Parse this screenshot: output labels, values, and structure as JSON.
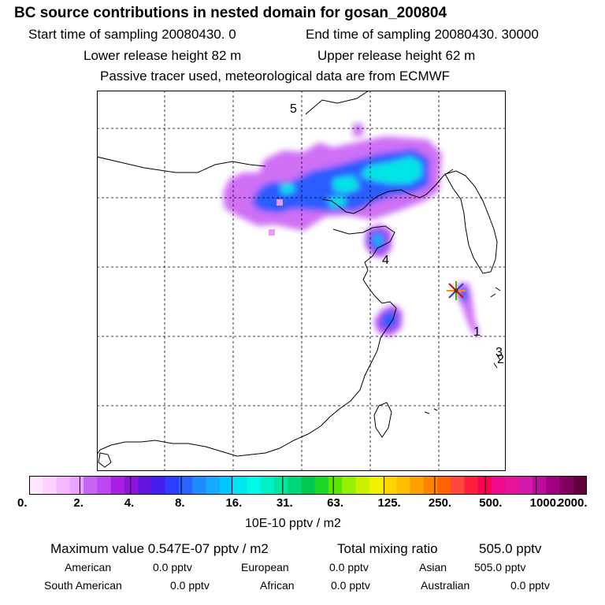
{
  "header": {
    "title": "BC  source contributions in nested domain for gosan_200804",
    "start": "Start time of sampling 20080430.     0",
    "end": "End time of sampling 20080430. 30000",
    "lower": "Lower release height   82 m",
    "upper": "Upper release height   62 m",
    "tracer": "Passive tracer used, meteorological data are from ECMWF"
  },
  "map": {
    "labels": [
      "5",
      "4",
      "1",
      "3",
      "2"
    ],
    "receptor": "receptor-star"
  },
  "colorbar": {
    "colors": [
      "#ffe8ff",
      "#ffd2ff",
      "#f5b8ff",
      "#e9a4ff",
      "#c864f5",
      "#be46f5",
      "#aa1ee6",
      "#8c14dc",
      "#6414dc",
      "#461ef0",
      "#2d3cff",
      "#2864ff",
      "#1e8cff",
      "#14aaff",
      "#00c8ff",
      "#00e6f0",
      "#00fae6",
      "#00f0c8",
      "#00e6a0",
      "#00d778",
      "#00c850",
      "#1ed728",
      "#5ae600",
      "#96f000",
      "#c8f000",
      "#f0f000",
      "#ffd700",
      "#ffbe00",
      "#ffa000",
      "#ff8200",
      "#ff6400",
      "#ff463c",
      "#ff1e3c",
      "#ff0050",
      "#f00a8c",
      "#e6149b",
      "#d219aa",
      "#be0aa0",
      "#a0007f",
      "#82005f",
      "#64003c"
    ],
    "ticks": [
      "0.",
      "2.",
      "4.",
      "8.",
      "16.",
      "31.",
      "63.",
      "125.",
      "250.",
      "500.",
      "1000.",
      "2000."
    ],
    "units": "10E-10 pptv / m2"
  },
  "summary": {
    "maximum": "Maximum value  0.547E-07 pptv / m2",
    "total_label": "Total mixing ratio",
    "total_value": "505.0 pptv",
    "regions": [
      {
        "name": "American",
        "value": "0.0 pptv"
      },
      {
        "name": "European",
        "value": "0.0 pptv"
      },
      {
        "name": "Asian",
        "value": "505.0 pptv"
      },
      {
        "name": "South American",
        "value": "0.0 pptv"
      },
      {
        "name": "African",
        "value": "0.0 pptv"
      },
      {
        "name": "Australian",
        "value": "0.0 pptv"
      }
    ]
  }
}
